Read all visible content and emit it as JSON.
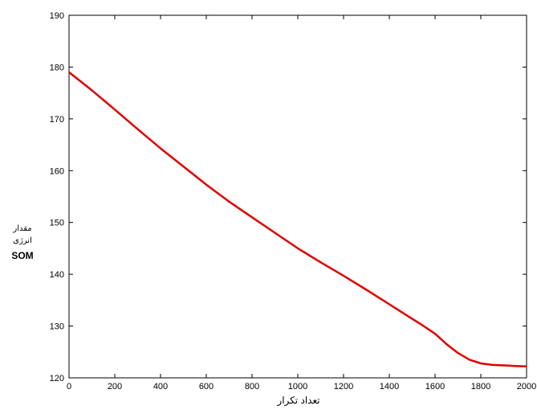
{
  "chart_data": {
    "type": "line",
    "title": "",
    "xlabel": "تعداد تکرار",
    "ylabel_lines": [
      "مقدار",
      "انرژی",
      "SOM"
    ],
    "xlim": [
      0,
      2000
    ],
    "ylim": [
      120,
      190
    ],
    "xticks": [
      0,
      200,
      400,
      600,
      800,
      1000,
      1200,
      1400,
      1600,
      1800,
      2000
    ],
    "yticks": [
      120,
      130,
      140,
      150,
      160,
      170,
      180,
      190
    ],
    "grid": false,
    "series": [
      {
        "color": "#e00000",
        "x": [
          0,
          100,
          200,
          300,
          400,
          500,
          600,
          700,
          800,
          900,
          1000,
          1100,
          1200,
          1300,
          1400,
          1500,
          1550,
          1600,
          1650,
          1700,
          1750,
          1800,
          1850,
          1900,
          1950,
          2000
        ],
        "y": [
          179,
          175.5,
          171.8,
          168,
          164.3,
          160.8,
          157.3,
          154,
          151,
          148,
          145,
          142.3,
          139.7,
          137,
          134.2,
          131.4,
          130,
          128.5,
          126.5,
          124.8,
          123.5,
          122.8,
          122.5,
          122.4,
          122.3,
          122.2
        ]
      }
    ]
  }
}
